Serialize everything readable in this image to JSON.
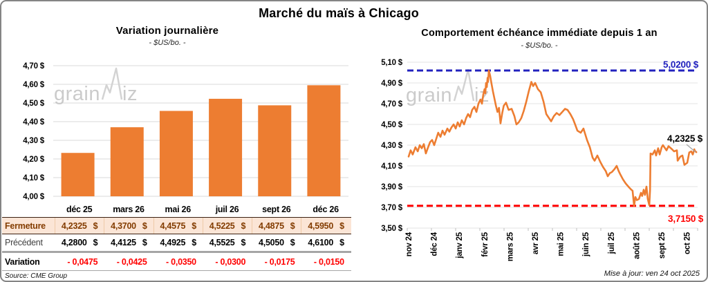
{
  "title": "Marché du maïs à Chicago",
  "watermark": {
    "part1": "grain",
    "part2": "iz"
  },
  "chart_data": [
    {
      "type": "bar",
      "title": "Variation journalière",
      "subtitle": "- $US/bo. -",
      "categories": [
        "déc 25",
        "mars 26",
        "mai 26",
        "juil 26",
        "sept 26",
        "déc 26"
      ],
      "values": [
        4.2325,
        4.37,
        4.4575,
        4.5225,
        4.4875,
        4.595
      ],
      "ylim": [
        4.0,
        4.7
      ],
      "ytick_labels": [
        "4,70 $",
        "4,60 $",
        "4,50 $",
        "4,40 $",
        "4,30 $",
        "4,20 $",
        "4,10 $",
        "4,00 $"
      ],
      "bar_color": "#ED7D31",
      "grid_color": "#D9D9D9"
    },
    {
      "type": "line",
      "title": "Comportement échéance immédiate depuis 1 an",
      "subtitle": "- $US/bo. -",
      "x_labels": [
        "nov 24",
        "déc 24",
        "janv 25",
        "févr 25",
        "mars 25",
        "avr 25",
        "mai 25",
        "juin 25",
        "juil 25",
        "août 25",
        "sept 25",
        "oct 25"
      ],
      "ylim": [
        3.5,
        5.1
      ],
      "ytick_labels": [
        "5,10 $",
        "4,90 $",
        "4,70 $",
        "4,50 $",
        "4,30 $",
        "4,10 $",
        "3,90 $",
        "3,70 $",
        "3,50 $"
      ],
      "line_color": "#ED7D31",
      "grid_color": "#E3E3E3",
      "max_line": {
        "value": 5.02,
        "label": "5,0200 $",
        "color": "#2222BE"
      },
      "min_line": {
        "value": 3.715,
        "label": "3,7150 $",
        "color": "#FF0000"
      },
      "last_point": {
        "value": 4.2325,
        "label": "4,2325 $"
      },
      "points": [
        [
          0.0,
          4.19
        ],
        [
          0.08,
          4.25
        ],
        [
          0.16,
          4.21
        ],
        [
          0.27,
          4.28
        ],
        [
          0.36,
          4.24
        ],
        [
          0.44,
          4.3
        ],
        [
          0.52,
          4.27
        ],
        [
          0.6,
          4.31
        ],
        [
          0.68,
          4.22
        ],
        [
          0.77,
          4.28
        ],
        [
          0.85,
          4.33
        ],
        [
          0.93,
          4.35
        ],
        [
          1.01,
          4.3
        ],
        [
          1.09,
          4.36
        ],
        [
          1.17,
          4.42
        ],
        [
          1.26,
          4.38
        ],
        [
          1.34,
          4.44
        ],
        [
          1.42,
          4.4
        ],
        [
          1.53,
          4.46
        ],
        [
          1.61,
          4.43
        ],
        [
          1.69,
          4.47
        ],
        [
          1.78,
          4.5
        ],
        [
          1.86,
          4.46
        ],
        [
          1.94,
          4.52
        ],
        [
          2.02,
          4.48
        ],
        [
          2.1,
          4.54
        ],
        [
          2.19,
          4.5
        ],
        [
          2.27,
          4.56
        ],
        [
          2.35,
          4.6
        ],
        [
          2.43,
          4.57
        ],
        [
          2.51,
          4.64
        ],
        [
          2.6,
          4.67
        ],
        [
          2.68,
          4.62
        ],
        [
          2.76,
          4.7
        ],
        [
          2.84,
          4.74
        ],
        [
          2.9,
          4.7
        ],
        [
          2.95,
          4.79
        ],
        [
          3.0,
          4.84
        ],
        [
          3.03,
          4.8
        ],
        [
          3.06,
          4.9
        ],
        [
          3.09,
          4.86
        ],
        [
          3.12,
          4.95
        ],
        [
          3.14,
          4.91
        ],
        [
          3.17,
          5.02
        ],
        [
          3.22,
          4.97
        ],
        [
          3.27,
          4.9
        ],
        [
          3.33,
          4.82
        ],
        [
          3.39,
          4.75
        ],
        [
          3.45,
          4.68
        ],
        [
          3.51,
          4.62
        ],
        [
          3.57,
          4.66
        ],
        [
          3.63,
          4.51
        ],
        [
          3.7,
          4.61
        ],
        [
          3.76,
          4.68
        ],
        [
          3.85,
          4.71
        ],
        [
          3.95,
          4.64
        ],
        [
          4.07,
          4.65
        ],
        [
          4.18,
          4.58
        ],
        [
          4.26,
          4.5
        ],
        [
          4.35,
          4.52
        ],
        [
          4.45,
          4.56
        ],
        [
          4.55,
          4.63
        ],
        [
          4.65,
          4.72
        ],
        [
          4.75,
          4.82
        ],
        [
          4.85,
          4.91
        ],
        [
          4.92,
          4.87
        ],
        [
          5.0,
          4.9
        ],
        [
          5.11,
          4.84
        ],
        [
          5.22,
          4.81
        ],
        [
          5.33,
          4.72
        ],
        [
          5.44,
          4.6
        ],
        [
          5.55,
          4.56
        ],
        [
          5.63,
          4.53
        ],
        [
          5.74,
          4.58
        ],
        [
          5.85,
          4.61
        ],
        [
          5.96,
          4.59
        ],
        [
          6.07,
          4.62
        ],
        [
          6.18,
          4.65
        ],
        [
          6.28,
          4.64
        ],
        [
          6.39,
          4.6
        ],
        [
          6.5,
          4.55
        ],
        [
          6.58,
          4.5
        ],
        [
          6.67,
          4.44
        ],
        [
          6.8,
          4.42
        ],
        [
          6.91,
          4.46
        ],
        [
          7.05,
          4.35
        ],
        [
          7.16,
          4.28
        ],
        [
          7.27,
          4.18
        ],
        [
          7.35,
          4.15
        ],
        [
          7.46,
          4.2
        ],
        [
          7.57,
          4.14
        ],
        [
          7.68,
          4.09
        ],
        [
          7.79,
          4.05
        ],
        [
          7.87,
          4.0
        ],
        [
          7.95,
          4.03
        ],
        [
          8.03,
          4.04
        ],
        [
          8.14,
          4.07
        ],
        [
          8.22,
          4.1
        ],
        [
          8.3,
          4.05
        ],
        [
          8.36,
          4.02
        ],
        [
          8.47,
          3.97
        ],
        [
          8.58,
          3.93
        ],
        [
          8.72,
          3.89
        ],
        [
          8.8,
          3.87
        ],
        [
          8.85,
          3.86
        ],
        [
          8.91,
          3.715
        ],
        [
          8.96,
          3.8
        ],
        [
          9.02,
          3.77
        ],
        [
          9.1,
          3.78
        ],
        [
          9.18,
          3.84
        ],
        [
          9.23,
          3.81
        ],
        [
          9.29,
          3.87
        ],
        [
          9.34,
          3.82
        ],
        [
          9.4,
          3.9
        ],
        [
          9.45,
          3.78
        ],
        [
          9.51,
          3.72
        ],
        [
          9.54,
          3.87
        ],
        [
          9.56,
          4.22
        ],
        [
          9.64,
          4.21
        ],
        [
          9.73,
          4.25
        ],
        [
          9.78,
          4.2
        ],
        [
          9.86,
          4.27
        ],
        [
          9.92,
          4.21
        ],
        [
          10.0,
          4.28
        ],
        [
          10.05,
          4.3
        ],
        [
          10.19,
          4.25
        ],
        [
          10.27,
          4.29
        ],
        [
          10.41,
          4.26
        ],
        [
          10.49,
          4.24
        ],
        [
          10.6,
          4.25
        ],
        [
          10.63,
          4.15
        ],
        [
          10.74,
          4.19
        ],
        [
          10.82,
          4.2
        ],
        [
          10.9,
          4.11
        ],
        [
          11.01,
          4.13
        ],
        [
          11.09,
          4.23
        ],
        [
          11.17,
          4.24
        ],
        [
          11.23,
          4.21
        ],
        [
          11.29,
          4.26
        ],
        [
          11.31,
          4.245
        ],
        [
          11.37,
          4.2325
        ]
      ]
    }
  ],
  "table": {
    "columns": [
      "déc 25",
      "mars 26",
      "mai 26",
      "juil 26",
      "sept 26",
      "déc 26"
    ],
    "rows": [
      {
        "key": "fermeture",
        "label": "Fermeture",
        "currency": "$",
        "values": [
          "4,2325",
          "4,3700",
          "4,4575",
          "4,5225",
          "4,4875",
          "4,5950"
        ]
      },
      {
        "key": "precedent",
        "label": "Précédent",
        "currency": "$",
        "values": [
          "4,2800",
          "4,4125",
          "4,4925",
          "4,5525",
          "4,5050",
          "4,6100"
        ]
      },
      {
        "key": "variation",
        "label": "Variation",
        "currency": null,
        "values": [
          "- 0,0475",
          "- 0,0425",
          "- 0,0350",
          "- 0,0300",
          "- 0,0175",
          "- 0,0150"
        ]
      }
    ]
  },
  "footer": {
    "source": "Source: CME Group",
    "updated": "Mise à jour: ven 24 oct 2025"
  }
}
